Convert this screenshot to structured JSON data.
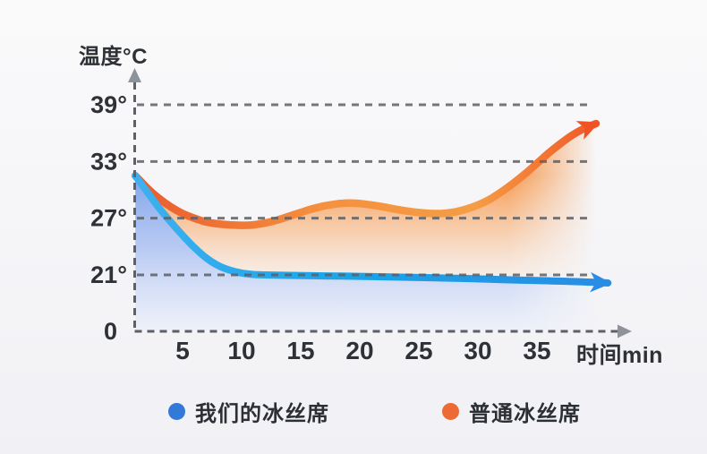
{
  "axes": {
    "y_title": "温度°C",
    "x_title": "时间min",
    "origin_label": "0",
    "grid_color": "#5d6066",
    "axis_arrow_color": "#8e939b",
    "label_color": "#2e3136"
  },
  "legend": {
    "items": [
      {
        "label": "我们的冰丝席",
        "color": "#3279d8"
      },
      {
        "label": "普通冰丝席",
        "color": "#ed6a35"
      }
    ]
  },
  "chart_data": {
    "type": "area",
    "title": "",
    "xlabel": "时间min",
    "ylabel": "温度°C",
    "x_unit": "min",
    "y_unit": "°C",
    "x_ticks": [
      5,
      10,
      15,
      20,
      25,
      30,
      35
    ],
    "y_ticks": [
      {
        "value": 21,
        "label": "21°"
      },
      {
        "value": 27,
        "label": "27°"
      },
      {
        "value": 33,
        "label": "33°"
      },
      {
        "value": 39,
        "label": "39°"
      }
    ],
    "origin_label": "0",
    "axis_break": "y axis is compressed between 0 and 21",
    "xlim": [
      0,
      41
    ],
    "ylim_shown": [
      21,
      39
    ],
    "grid": {
      "visible": true,
      "dashed": true
    },
    "legend_position": "bottom",
    "series": [
      {
        "name": "我们的冰丝席",
        "dot_color": "#3279d8",
        "stroke_colors": [
          "#3fb0ee",
          "#18a4e9",
          "#2b8ce3"
        ],
        "fill_colors": [
          "#7ba1ea",
          "#9db7f0",
          "#e9effb"
        ],
        "arrow_color": "#2b8ce3",
        "points": [
          [
            1,
            31.5
          ],
          [
            2,
            29.8
          ],
          [
            3,
            28.1
          ],
          [
            4,
            26.6
          ],
          [
            5,
            25.2
          ],
          [
            6,
            23.9
          ],
          [
            7,
            22.8
          ],
          [
            8,
            22.0
          ],
          [
            9,
            21.5
          ],
          [
            10,
            21.2
          ],
          [
            11,
            21.05
          ],
          [
            12,
            21.0
          ],
          [
            14,
            20.95
          ],
          [
            17,
            20.9
          ],
          [
            20,
            20.85
          ],
          [
            24,
            20.75
          ],
          [
            28,
            20.65
          ],
          [
            32,
            20.5
          ],
          [
            35,
            20.4
          ],
          [
            38,
            20.3
          ],
          [
            41,
            20.15
          ]
        ]
      },
      {
        "name": "普通冰丝席",
        "dot_color": "#ed6a35",
        "stroke_colors": [
          "#e95b2e",
          "#f5913e",
          "#f59c45",
          "#ef5224"
        ],
        "fill_colors": [
          "#f58f3d",
          "#f8b57e",
          "#fbe6d4"
        ],
        "arrow_color": "#ef5224",
        "points": [
          [
            1,
            31.5
          ],
          [
            2,
            30.2
          ],
          [
            3,
            29.1
          ],
          [
            4,
            28.2
          ],
          [
            5,
            27.5
          ],
          [
            6,
            27.0
          ],
          [
            7,
            26.6
          ],
          [
            8,
            26.4
          ],
          [
            9,
            26.3
          ],
          [
            10,
            26.25
          ],
          [
            11,
            26.3
          ],
          [
            12,
            26.5
          ],
          [
            13,
            26.8
          ],
          [
            14,
            27.2
          ],
          [
            15,
            27.6
          ],
          [
            16,
            28.0
          ],
          [
            17,
            28.3
          ],
          [
            18,
            28.5
          ],
          [
            19,
            28.6
          ],
          [
            20,
            28.55
          ],
          [
            21,
            28.4
          ],
          [
            22,
            28.2
          ],
          [
            23,
            27.95
          ],
          [
            24,
            27.75
          ],
          [
            25,
            27.6
          ],
          [
            26,
            27.5
          ],
          [
            27,
            27.5
          ],
          [
            28,
            27.65
          ],
          [
            29,
            27.95
          ],
          [
            30,
            28.4
          ],
          [
            31,
            29.0
          ],
          [
            32,
            29.8
          ],
          [
            33,
            30.7
          ],
          [
            34,
            31.7
          ],
          [
            35,
            32.8
          ],
          [
            36,
            33.9
          ],
          [
            37,
            34.9
          ],
          [
            38,
            35.8
          ],
          [
            39,
            36.5
          ],
          [
            40,
            37.0
          ]
        ]
      }
    ]
  }
}
